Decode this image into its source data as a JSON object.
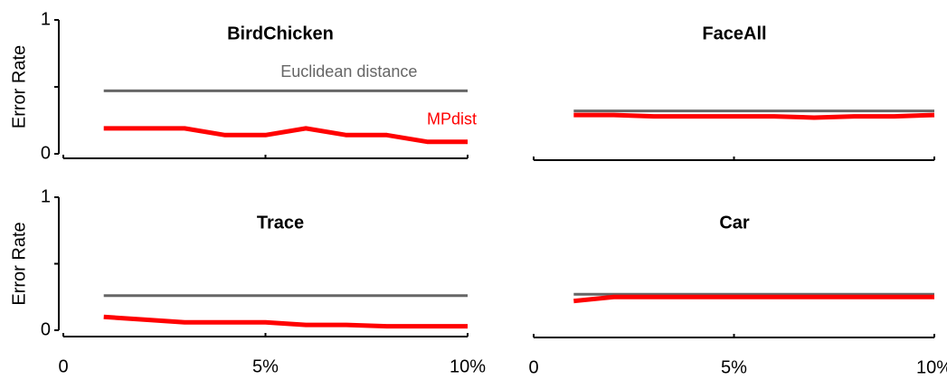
{
  "chart_data": [
    {
      "type": "line",
      "title": "BirdChicken",
      "y_label": "Error Rate",
      "x": [
        1,
        2,
        3,
        4,
        5,
        6,
        7,
        8,
        9,
        10
      ],
      "series": [
        {
          "name": "Euclidean distance",
          "color": "#666666",
          "values": [
            0.47,
            0.47,
            0.47,
            0.47,
            0.47,
            0.47,
            0.47,
            0.47,
            0.47,
            0.47
          ]
        },
        {
          "name": "MPdist",
          "color": "#ff0000",
          "values": [
            0.19,
            0.19,
            0.19,
            0.14,
            0.14,
            0.19,
            0.14,
            0.14,
            0.09,
            0.09
          ]
        }
      ],
      "xlim": [
        0,
        10
      ],
      "ylim": [
        0,
        1
      ],
      "xticks": [
        0,
        5,
        10
      ],
      "yticks": [
        0,
        {
          "value": 0.5,
          "label": null
        },
        1
      ]
    },
    {
      "type": "line",
      "title": "FaceAll",
      "x": [
        1,
        2,
        3,
        4,
        5,
        6,
        7,
        8,
        9,
        10
      ],
      "series": [
        {
          "color": "#666666",
          "values": [
            0.32,
            0.32,
            0.32,
            0.32,
            0.32,
            0.32,
            0.32,
            0.32,
            0.32,
            0.32
          ]
        },
        {
          "color": "#ff0000",
          "values": [
            0.29,
            0.29,
            0.28,
            0.28,
            0.28,
            0.28,
            0.27,
            0.28,
            0.28,
            0.29
          ]
        }
      ],
      "xlim": [
        0,
        10
      ],
      "ylim": [
        0,
        1
      ],
      "xticks": [
        0,
        5,
        10
      ]
    },
    {
      "type": "line",
      "title": "Trace",
      "y_label": "Error Rate",
      "x": [
        1,
        2,
        3,
        4,
        5,
        6,
        7,
        8,
        9,
        10
      ],
      "series": [
        {
          "color": "#666666",
          "values": [
            0.26,
            0.26,
            0.26,
            0.26,
            0.26,
            0.26,
            0.26,
            0.26,
            0.26,
            0.26
          ]
        },
        {
          "color": "#ff0000",
          "values": [
            0.1,
            0.08,
            0.06,
            0.06,
            0.06,
            0.04,
            0.04,
            0.03,
            0.03,
            0.03
          ]
        }
      ],
      "xlim": [
        0,
        10
      ],
      "ylim": [
        0,
        1
      ],
      "xticks": [
        0,
        {
          "value": 5,
          "label": "5%"
        },
        {
          "value": 10,
          "label": "10%"
        }
      ],
      "yticks": [
        0,
        {
          "value": 0.5,
          "label": null
        },
        1
      ]
    },
    {
      "type": "line",
      "title": "Car",
      "x": [
        1,
        2,
        3,
        4,
        5,
        6,
        7,
        8,
        9,
        10
      ],
      "series": [
        {
          "color": "#666666",
          "values": [
            0.27,
            0.27,
            0.27,
            0.27,
            0.27,
            0.27,
            0.27,
            0.27,
            0.27,
            0.27
          ]
        },
        {
          "color": "#ff0000",
          "values": [
            0.22,
            0.25,
            0.25,
            0.25,
            0.25,
            0.25,
            0.25,
            0.25,
            0.25,
            0.25
          ]
        }
      ],
      "xlim": [
        0,
        10
      ],
      "ylim": [
        0,
        1
      ],
      "xticks": [
        0,
        {
          "value": 5,
          "label": "5%"
        },
        {
          "value": 10,
          "label": "10%"
        }
      ]
    }
  ]
}
